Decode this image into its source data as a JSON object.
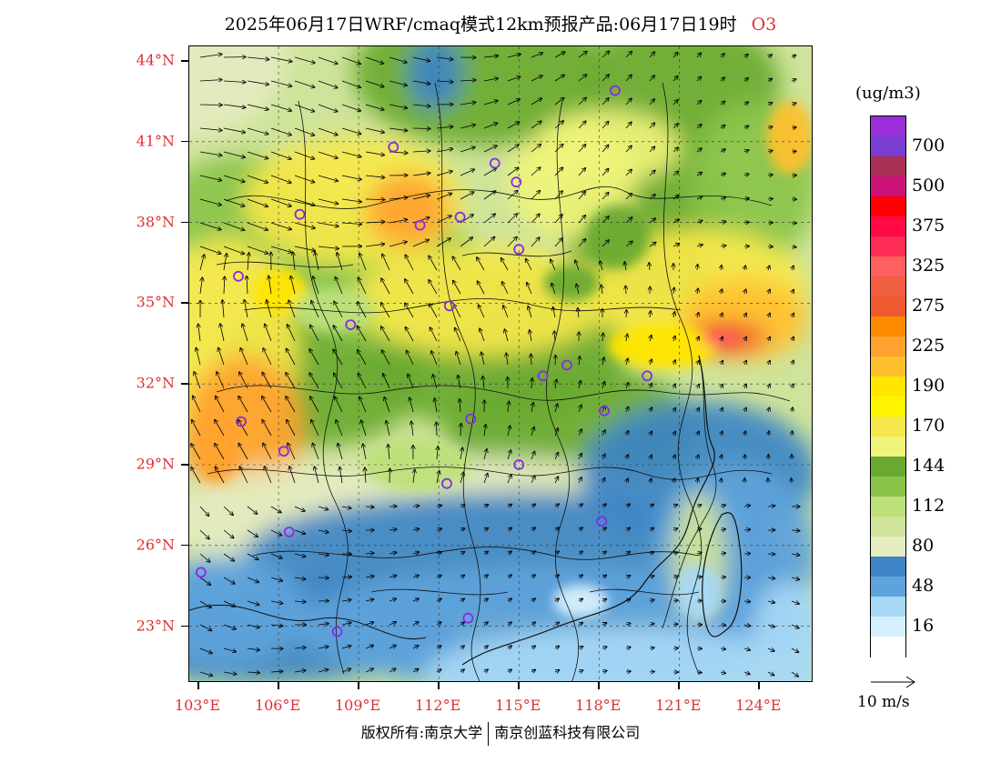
{
  "title": {
    "main": "2025年06月17日WRF/cmaq模式12km预报产品:06月17日19时",
    "species": "O3"
  },
  "unit_label": "(ug/m3)",
  "latitude_labels": [
    "44°N",
    "41°N",
    "38°N",
    "35°N",
    "32°N",
    "29°N",
    "26°N",
    "23°N"
  ],
  "longitude_labels": [
    "103°E",
    "106°E",
    "109°E",
    "112°E",
    "115°E",
    "118°E",
    "121°E",
    "124°E"
  ],
  "legend": {
    "bins": [
      {
        "color": "#9a2fd9"
      },
      {
        "color": "#7a3fd2",
        "label": "700"
      },
      {
        "color": "#aa2f55"
      },
      {
        "color": "#cc1177",
        "label": "500"
      },
      {
        "color": "#ff0000"
      },
      {
        "color": "#ff0a45",
        "label": "375"
      },
      {
        "color": "#ff2c55"
      },
      {
        "color": "#ff6060",
        "label": "325"
      },
      {
        "color": "#f06040"
      },
      {
        "color": "#f05a30",
        "label": "275"
      },
      {
        "color": "#ff8c00"
      },
      {
        "color": "#ffa230",
        "label": "225"
      },
      {
        "color": "#ffc030"
      },
      {
        "color": "#ffe500",
        "label": "190"
      },
      {
        "color": "#fff500"
      },
      {
        "color": "#f6e84a",
        "label": "170"
      },
      {
        "color": "#eff47a"
      },
      {
        "color": "#6aaa32",
        "label": "144"
      },
      {
        "color": "#8ac44a"
      },
      {
        "color": "#bde07a",
        "label": "112"
      },
      {
        "color": "#cfe49a"
      },
      {
        "color": "#e4ecc0",
        "label": "80"
      },
      {
        "color": "#3d85c6"
      },
      {
        "color": "#5ea3dc",
        "label": "48"
      },
      {
        "color": "#a6d8f6"
      },
      {
        "color": "#d6effc",
        "label": "16"
      },
      {
        "color": "#ffffff"
      }
    ]
  },
  "wind_reference": {
    "label": "10 m/s"
  },
  "copyright": {
    "left": "版权所有:南京大学",
    "right": "南京创蓝科技有限公司"
  },
  "stations": [
    {
      "lon": 118.6,
      "lat": 42.9
    },
    {
      "lon": 110.3,
      "lat": 40.8
    },
    {
      "lon": 114.1,
      "lat": 40.2
    },
    {
      "lon": 114.9,
      "lat": 39.5
    },
    {
      "lon": 106.8,
      "lat": 38.3
    },
    {
      "lon": 111.3,
      "lat": 37.9
    },
    {
      "lon": 112.8,
      "lat": 38.2
    },
    {
      "lon": 115.0,
      "lat": 37.0
    },
    {
      "lon": 104.5,
      "lat": 36.0
    },
    {
      "lon": 112.4,
      "lat": 34.9
    },
    {
      "lon": 108.7,
      "lat": 34.2
    },
    {
      "lon": 116.8,
      "lat": 32.7
    },
    {
      "lon": 115.9,
      "lat": 32.3
    },
    {
      "lon": 119.8,
      "lat": 32.3
    },
    {
      "lon": 118.2,
      "lat": 31.0
    },
    {
      "lon": 104.6,
      "lat": 30.6
    },
    {
      "lon": 113.2,
      "lat": 30.7
    },
    {
      "lon": 106.2,
      "lat": 29.5
    },
    {
      "lon": 115.0,
      "lat": 29.0
    },
    {
      "lon": 112.3,
      "lat": 28.3
    },
    {
      "lon": 118.1,
      "lat": 26.9
    },
    {
      "lon": 106.4,
      "lat": 26.5
    },
    {
      "lon": 103.1,
      "lat": 25.0
    },
    {
      "lon": 113.1,
      "lat": 23.3
    },
    {
      "lon": 108.2,
      "lat": 22.8
    }
  ]
}
